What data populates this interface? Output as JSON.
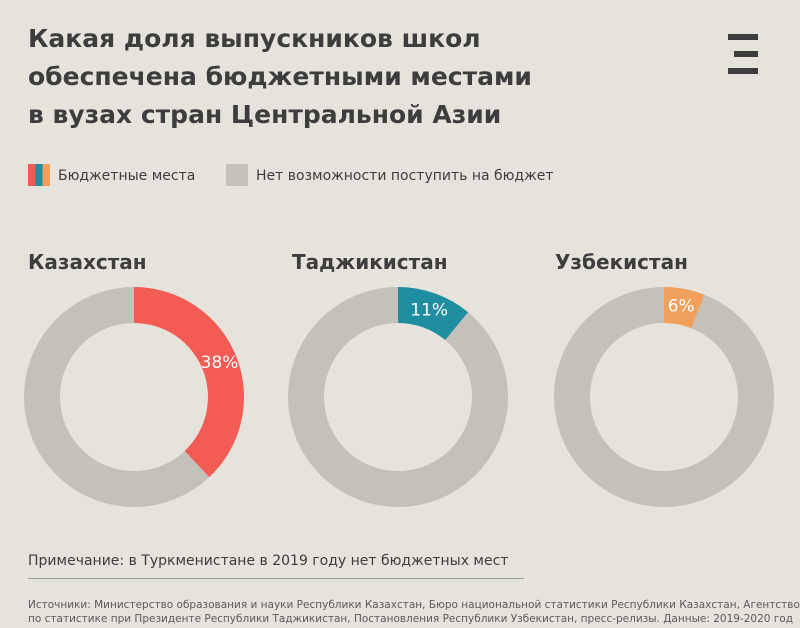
{
  "title_lines": [
    "Какая доля выпускников школ",
    "обеспечена бюджетными местами",
    "в вузах стран Центральной Азии"
  ],
  "legend": {
    "budget": "Бюджетные места",
    "no_budget": "Нет возможности поступить на бюджет"
  },
  "colors": {
    "background": "#e6e3dc",
    "remainder": "#c4c1bb",
    "kazakhstan": "#f25c54",
    "tajikistan": "#1f8ea0",
    "uzbekistan": "#f1a05c"
  },
  "chart_data": [
    {
      "type": "pie",
      "title": "Казахстан",
      "categories": [
        "Бюджетные места",
        "Нет возможности поступить на бюджет"
      ],
      "values": [
        38,
        62
      ],
      "value_label": "38%",
      "color": "#f25c54"
    },
    {
      "type": "pie",
      "title": "Таджикистан",
      "categories": [
        "Бюджетные места",
        "Нет возможности поступить на бюджет"
      ],
      "values": [
        11,
        89
      ],
      "value_label": "11%",
      "color": "#1f8ea0"
    },
    {
      "type": "pie",
      "title": "Узбекистан",
      "categories": [
        "Бюджетные места",
        "Нет возможности поступить на бюджет"
      ],
      "values": [
        6,
        94
      ],
      "value_label": "6%",
      "color": "#f1a05c"
    }
  ],
  "note": "Примечание: в Туркменистане в 2019 году нет бюджетных мест",
  "sources_lines": [
    "Источники: Министерство образования и науки Республики Казахстан, Бюро национальной статистики Республики Казахстан, Агентство",
    "по статистике при Президенте Республики Таджикистан, Постановления Республики Узбекистан, пресс-релизы. Данные: 2019-2020 год"
  ]
}
